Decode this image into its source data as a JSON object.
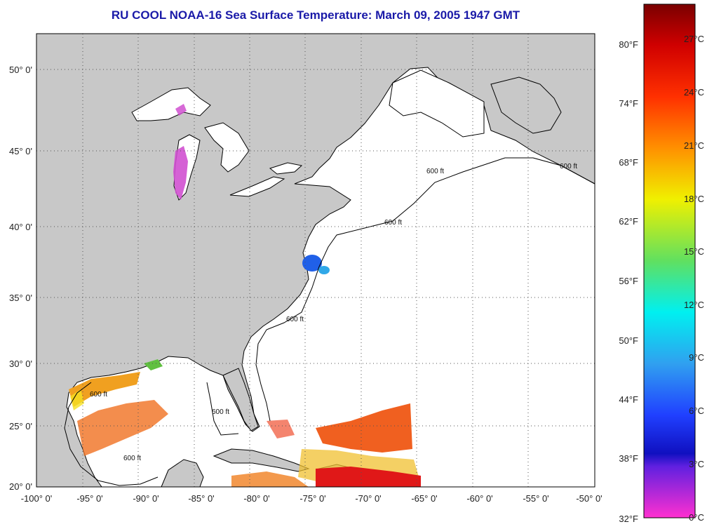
{
  "title": "RU COOL  NOAA-16  Sea Surface Temperature:  March 09, 2005 1947 GMT",
  "axes": {
    "lon_labels": [
      "-100° 0'",
      "-95° 0'",
      "-90° 0'",
      "-85° 0'",
      "-80° 0'",
      "-75° 0'",
      "-70° 0'",
      "-65° 0'",
      "-60° 0'",
      "-55° 0'",
      "-50° 0'"
    ],
    "lat_labels": [
      "50° 0'",
      "45° 0'",
      "40° 0'",
      "35° 0'",
      "30° 0'",
      "25° 0'",
      "20° 0'"
    ]
  },
  "contour_label": "600 ft",
  "colorbar": {
    "fahrenheit_labels": [
      "80°F",
      "74°F",
      "68°F",
      "62°F",
      "56°F",
      "50°F",
      "44°F",
      "38°F",
      "32°F"
    ],
    "celsius_labels": [
      "27°C",
      "24°C",
      "21°C",
      "18°C",
      "15°C",
      "12°C",
      "9°C",
      "6°C",
      "3°C",
      "0°C"
    ]
  },
  "colors": {
    "land": "#c8c8c8",
    "ocean_no_data": "#ffffff",
    "title": "#1a1aa8"
  }
}
